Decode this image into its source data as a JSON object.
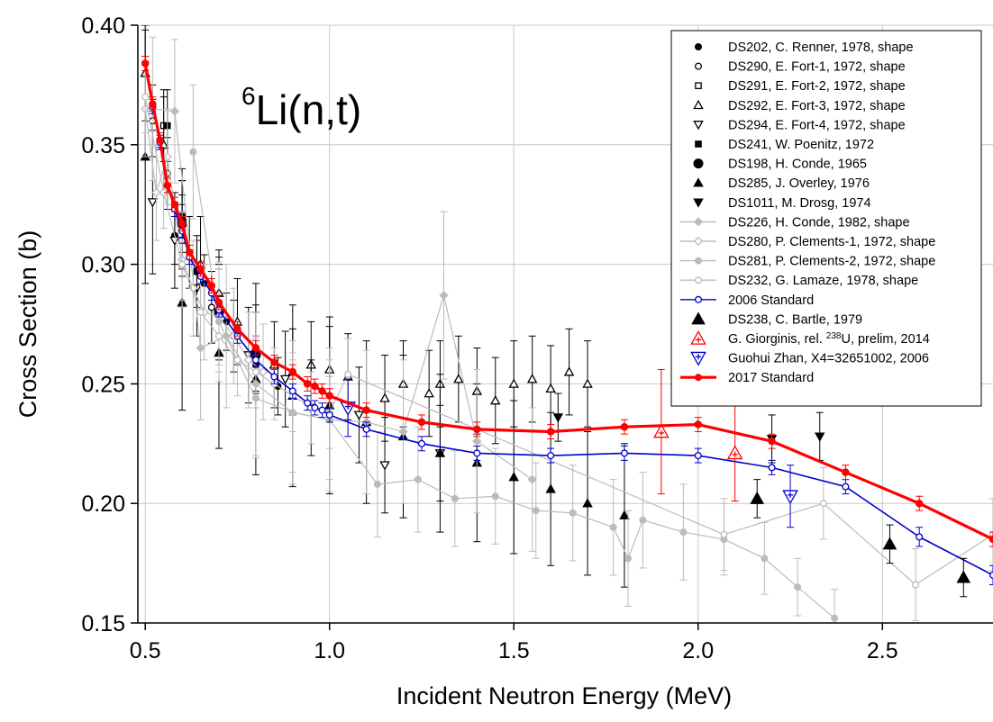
{
  "chart_data": {
    "type": "scatter",
    "annotation": {
      "sup": "6",
      "main": "Li(n,t)"
    },
    "xlabel": "Incident Neutron Energy (MeV)",
    "ylabel": "Cross Section (b)",
    "xlim": [
      0.48,
      2.8
    ],
    "ylim": [
      0.15,
      0.4
    ],
    "xticks": [
      "0.5",
      "1.0",
      "1.5",
      "2.0",
      "2.5"
    ],
    "yticks": [
      "0.15",
      "0.20",
      "0.25",
      "0.30",
      "0.35",
      "0.40"
    ],
    "grid": true,
    "legend_position": "top-right",
    "colors": {
      "red": "#ff0000",
      "blue": "#0000cc",
      "gray": "#bbbbbb",
      "black": "#000000"
    },
    "series": [
      {
        "name": "DS202, C. Renner, 1978, shape",
        "marker": "circle-filled",
        "color": "#000000",
        "x": [
          0.58,
          0.6,
          0.66,
          0.72,
          0.8,
          0.86
        ],
        "y": [
          0.312,
          0.31,
          0.292,
          0.276,
          0.258,
          0.249
        ],
        "err": [
          0.012,
          0.012,
          0.012,
          0.012,
          0.012,
          0.012
        ]
      },
      {
        "name": "DS290, E. Fort-1, 1972, shape",
        "marker": "circle-open",
        "color": "#000000",
        "x": [
          0.52,
          0.56,
          0.62,
          0.68,
          0.74
        ],
        "y": [
          0.36,
          0.338,
          0.305,
          0.282,
          0.27
        ],
        "err": [
          0.015,
          0.015,
          0.015,
          0.015,
          0.015
        ]
      },
      {
        "name": "DS291, E. Fort-2, 1972, shape",
        "marker": "square-open",
        "color": "#000000",
        "x": [
          0.55,
          0.6
        ],
        "y": [
          0.358,
          0.31
        ],
        "err": [
          0.015,
          0.015
        ]
      },
      {
        "name": "DS292, E. Fort-3, 1972, shape",
        "marker": "triangle-up-open",
        "color": "#000000",
        "x": [
          0.5,
          0.55,
          0.6,
          0.65,
          0.7,
          0.75,
          0.8,
          0.85,
          0.9,
          0.95,
          1.0,
          1.05,
          1.15,
          1.2,
          1.27,
          1.3,
          1.35,
          1.4,
          1.45,
          1.5,
          1.55,
          1.6,
          1.65,
          1.7
        ],
        "y": [
          0.38,
          0.35,
          0.32,
          0.3,
          0.288,
          0.276,
          0.265,
          0.258,
          0.255,
          0.258,
          0.256,
          0.253,
          0.244,
          0.25,
          0.246,
          0.25,
          0.252,
          0.247,
          0.243,
          0.25,
          0.252,
          0.248,
          0.255,
          0.25
        ],
        "err": [
          0.02,
          0.02,
          0.02,
          0.02,
          0.018,
          0.018,
          0.018,
          0.018,
          0.018,
          0.018,
          0.018,
          0.018,
          0.018,
          0.018,
          0.018,
          0.018,
          0.018,
          0.018,
          0.018,
          0.018,
          0.018,
          0.018,
          0.018,
          0.018
        ]
      },
      {
        "name": "DS294, E. Fort-4, 1972, shape",
        "marker": "triangle-down-open",
        "color": "#000000",
        "x": [
          0.52,
          0.58,
          0.64,
          0.7,
          0.78,
          0.88,
          0.95,
          1.08,
          1.15,
          1.3
        ],
        "y": [
          0.326,
          0.31,
          0.29,
          0.28,
          0.262,
          0.252,
          0.24,
          0.237,
          0.216,
          0.221
        ],
        "err": [
          0.03,
          0.02,
          0.02,
          0.02,
          0.02,
          0.02,
          0.02,
          0.02,
          0.02,
          0.02
        ]
      },
      {
        "name": "DS241, W. Poenitz, 1972",
        "marker": "square-filled",
        "color": "#000000",
        "x": [
          0.56,
          0.6,
          0.64
        ],
        "y": [
          0.358,
          0.32,
          0.297
        ],
        "err": [
          0.015,
          0.015,
          0.015
        ]
      },
      {
        "name": "DS198, H. Conde, 1965",
        "marker": "circle-filled-large",
        "color": "#000000",
        "x": [
          0.6,
          0.7,
          0.8
        ],
        "y": [
          0.317,
          0.28,
          0.262
        ],
        "err": [
          0.018,
          0.018,
          0.018
        ]
      },
      {
        "name": "DS285, J. Overley, 1976",
        "marker": "triangle-up-filled",
        "color": "#000000",
        "x": [
          0.5,
          0.6,
          0.7,
          0.8,
          0.9,
          1.0,
          1.1,
          1.2,
          1.3,
          1.4,
          1.5,
          1.6,
          1.7,
          1.8
        ],
        "y": [
          0.345,
          0.284,
          0.263,
          0.252,
          0.245,
          0.241,
          0.234,
          0.228,
          0.221,
          0.217,
          0.211,
          0.206,
          0.2,
          0.195
        ],
        "err": [
          0.053,
          0.045,
          0.04,
          0.04,
          0.038,
          0.037,
          0.034,
          0.034,
          0.033,
          0.033,
          0.032,
          0.032,
          0.03,
          0.03
        ]
      },
      {
        "name": "DS1011, M. Drosg, 1974",
        "marker": "triangle-down-filled",
        "color": "#000000",
        "x": [
          1.62,
          2.2,
          2.33
        ],
        "y": [
          0.236,
          0.227,
          0.228
        ],
        "err": [
          0.01,
          0.01,
          0.01
        ]
      },
      {
        "name": "DS226, H. Conde, 1982, shape",
        "marker": "diamond-filled",
        "color": "#bbbbbb",
        "x": [
          0.52,
          0.58,
          0.65,
          0.72,
          0.8,
          0.9,
          1.0,
          1.1,
          1.2,
          1.31,
          1.4,
          1.55
        ],
        "y": [
          0.365,
          0.364,
          0.265,
          0.27,
          0.25,
          0.238,
          0.235,
          0.234,
          0.23,
          0.287,
          0.226,
          0.21
        ],
        "err": [
          0.03,
          0.03,
          0.03,
          0.03,
          0.03,
          0.03,
          0.03,
          0.03,
          0.03,
          0.035,
          0.03,
          0.03
        ]
      },
      {
        "name": "DS280, P. Clements-1, 1972, shape",
        "marker": "diamond-open",
        "color": "#bbbbbb",
        "x": [
          0.5,
          0.53,
          0.56,
          0.6,
          0.63,
          0.66,
          0.7,
          0.74,
          0.78,
          0.82
        ],
        "y": [
          0.365,
          0.33,
          0.345,
          0.302,
          0.29,
          0.28,
          0.278,
          0.27,
          0.26,
          0.255
        ],
        "err": [
          0.02,
          0.02,
          0.02,
          0.02,
          0.02,
          0.02,
          0.02,
          0.02,
          0.02,
          0.02
        ]
      },
      {
        "name": "DS281, P. Clements-2, 1972, shape",
        "marker": "circle-filled",
        "color": "#bbbbbb",
        "x": [
          0.63,
          0.7,
          0.8,
          0.9,
          1.0,
          1.13,
          1.24,
          1.34,
          1.45,
          1.56,
          1.66,
          1.77,
          1.81,
          1.85,
          1.96,
          2.07,
          2.18,
          2.27,
          2.37
        ],
        "y": [
          0.347,
          0.276,
          0.244,
          0.238,
          0.235,
          0.208,
          0.21,
          0.202,
          0.203,
          0.197,
          0.196,
          0.19,
          0.177,
          0.193,
          0.188,
          0.185,
          0.177,
          0.165,
          0.152
        ],
        "err": [
          0.028,
          0.025,
          0.025,
          0.025,
          0.025,
          0.022,
          0.022,
          0.02,
          0.02,
          0.02,
          0.02,
          0.02,
          0.02,
          0.02,
          0.02,
          0.015,
          0.015,
          0.012,
          0.012
        ]
      },
      {
        "name": "DS232, G. Lamaze, 1978, shape",
        "marker": "circle-open",
        "color": "#bbbbbb",
        "x": [
          0.5,
          0.55,
          0.6,
          0.65,
          0.7,
          0.75,
          0.8,
          0.85,
          0.9,
          0.95,
          1.0,
          1.05,
          2.07,
          2.34,
          2.59,
          2.8
        ],
        "y": [
          0.37,
          0.33,
          0.3,
          0.28,
          0.27,
          0.26,
          0.255,
          0.25,
          0.245,
          0.24,
          0.238,
          0.254,
          0.187,
          0.2,
          0.166,
          0.187
        ],
        "err": [
          0.015,
          0.015,
          0.015,
          0.015,
          0.015,
          0.015,
          0.015,
          0.015,
          0.015,
          0.015,
          0.015,
          0.015,
          0.015,
          0.015,
          0.015,
          0.015
        ]
      },
      {
        "name": "2006 Standard",
        "marker": "circle-open",
        "color": "#0000cc",
        "line": true,
        "x": [
          0.5,
          0.52,
          0.54,
          0.56,
          0.58,
          0.6,
          0.62,
          0.65,
          0.68,
          0.7,
          0.75,
          0.8,
          0.85,
          0.9,
          0.94,
          0.96,
          0.98,
          1.0,
          1.1,
          1.25,
          1.4,
          1.6,
          1.8,
          2.0,
          2.2,
          2.4,
          2.6,
          2.8
        ],
        "y": [
          0.384,
          0.366,
          0.351,
          0.333,
          0.323,
          0.314,
          0.303,
          0.295,
          0.288,
          0.281,
          0.27,
          0.26,
          0.253,
          0.247,
          0.242,
          0.24,
          0.239,
          0.237,
          0.231,
          0.225,
          0.221,
          0.22,
          0.221,
          0.22,
          0.215,
          0.207,
          0.186,
          0.17
        ],
        "err": [
          0.003,
          0.003,
          0.003,
          0.003,
          0.003,
          0.003,
          0.003,
          0.003,
          0.003,
          0.003,
          0.003,
          0.003,
          0.003,
          0.003,
          0.003,
          0.003,
          0.003,
          0.003,
          0.003,
          0.003,
          0.003,
          0.003,
          0.003,
          0.003,
          0.003,
          0.003,
          0.004,
          0.004
        ]
      },
      {
        "name": "DS238, C. Bartle, 1979",
        "marker": "triangle-up-filled-large",
        "color": "#000000",
        "x": [
          2.16,
          2.52,
          2.72
        ],
        "y": [
          0.202,
          0.183,
          0.169
        ],
        "err": [
          0.008,
          0.008,
          0.008
        ]
      },
      {
        "name": "G. Giorginis, rel. {238}U, prelim, 2014",
        "marker": "triangle-up-open-plus",
        "color": "#ff0000",
        "x": [
          1.9,
          2.1
        ],
        "y": [
          0.23,
          0.221
        ],
        "err": [
          0.026,
          0.02
        ]
      },
      {
        "name": "Guohui Zhan, X4=32651002, 2006",
        "marker": "triangle-down-open-plus",
        "color": "#0000cc",
        "x": [
          1.05,
          2.25
        ],
        "y": [
          0.24,
          0.203
        ],
        "err": [
          0.012,
          0.013
        ]
      },
      {
        "name": "2017 Standard",
        "marker": "circle-filled",
        "color": "#ff0000",
        "line": true,
        "linewidth": 3.2,
        "x": [
          0.5,
          0.52,
          0.54,
          0.56,
          0.58,
          0.6,
          0.62,
          0.65,
          0.68,
          0.7,
          0.75,
          0.8,
          0.85,
          0.9,
          0.94,
          0.96,
          0.98,
          1.0,
          1.1,
          1.25,
          1.4,
          1.6,
          1.8,
          2.0,
          2.2,
          2.4,
          2.6,
          2.8
        ],
        "y": [
          0.384,
          0.367,
          0.352,
          0.333,
          0.325,
          0.317,
          0.305,
          0.298,
          0.291,
          0.284,
          0.273,
          0.265,
          0.259,
          0.255,
          0.25,
          0.249,
          0.247,
          0.245,
          0.239,
          0.234,
          0.231,
          0.23,
          0.232,
          0.233,
          0.226,
          0.213,
          0.2,
          0.185
        ],
        "err": [
          0.003,
          0.003,
          0.003,
          0.003,
          0.003,
          0.003,
          0.003,
          0.003,
          0.003,
          0.003,
          0.003,
          0.003,
          0.003,
          0.003,
          0.003,
          0.003,
          0.003,
          0.003,
          0.003,
          0.003,
          0.003,
          0.003,
          0.003,
          0.003,
          0.003,
          0.003,
          0.003,
          0.003
        ]
      }
    ]
  }
}
